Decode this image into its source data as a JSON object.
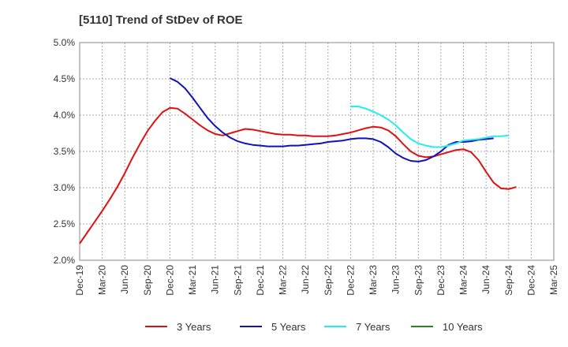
{
  "chart_data": {
    "type": "line",
    "title": "[5110]  Trend of StDev of ROE",
    "xlabel": "",
    "ylabel": "",
    "x_tick_labels": [
      "Dec-19",
      "Mar-20",
      "Jun-20",
      "Sep-20",
      "Dec-20",
      "Mar-21",
      "Jun-21",
      "Sep-21",
      "Dec-21",
      "Mar-22",
      "Jun-22",
      "Sep-22",
      "Dec-22",
      "Mar-23",
      "Jun-23",
      "Sep-23",
      "Dec-23",
      "Mar-24",
      "Jun-24",
      "Sep-24",
      "Dec-24",
      "Mar-25"
    ],
    "y_tick_labels": [
      "2.0%",
      "2.5%",
      "3.0%",
      "3.5%",
      "4.0%",
      "4.5%",
      "5.0%"
    ],
    "ylim": [
      2.0,
      5.0
    ],
    "y_unit": "%",
    "grid": true,
    "legend_position": "bottom",
    "series": [
      {
        "name": "3 Years",
        "color": "#dd1111",
        "points": [
          [
            "Dec-19",
            2.23
          ],
          [
            "Jan-20",
            2.38
          ],
          [
            "Feb-20",
            2.53
          ],
          [
            "Mar-20",
            2.68
          ],
          [
            "Apr-20",
            2.84
          ],
          [
            "May-20",
            3.01
          ],
          [
            "Jun-20",
            3.2
          ],
          [
            "Jul-20",
            3.41
          ],
          [
            "Aug-20",
            3.6
          ],
          [
            "Sep-20",
            3.78
          ],
          [
            "Oct-20",
            3.92
          ],
          [
            "Nov-20",
            4.04
          ],
          [
            "Dec-20",
            4.1
          ],
          [
            "Jan-21",
            4.09
          ],
          [
            "Feb-21",
            4.02
          ],
          [
            "Mar-21",
            3.94
          ],
          [
            "Apr-21",
            3.86
          ],
          [
            "May-21",
            3.79
          ],
          [
            "Jun-21",
            3.74
          ],
          [
            "Jul-21",
            3.72
          ],
          [
            "Aug-21",
            3.75
          ],
          [
            "Sep-21",
            3.78
          ],
          [
            "Oct-21",
            3.81
          ],
          [
            "Nov-21",
            3.8
          ],
          [
            "Dec-21",
            3.78
          ],
          [
            "Jan-22",
            3.76
          ],
          [
            "Feb-22",
            3.74
          ],
          [
            "Mar-22",
            3.73
          ],
          [
            "Apr-22",
            3.73
          ],
          [
            "May-22",
            3.72
          ],
          [
            "Jun-22",
            3.72
          ],
          [
            "Jul-22",
            3.71
          ],
          [
            "Aug-22",
            3.71
          ],
          [
            "Sep-22",
            3.71
          ],
          [
            "Oct-22",
            3.72
          ],
          [
            "Nov-22",
            3.74
          ],
          [
            "Dec-22",
            3.76
          ],
          [
            "Jan-23",
            3.79
          ],
          [
            "Feb-23",
            3.82
          ],
          [
            "Mar-23",
            3.84
          ],
          [
            "Apr-23",
            3.83
          ],
          [
            "May-23",
            3.79
          ],
          [
            "Jun-23",
            3.71
          ],
          [
            "Jul-23",
            3.6
          ],
          [
            "Aug-23",
            3.5
          ],
          [
            "Sep-23",
            3.44
          ],
          [
            "Oct-23",
            3.42
          ],
          [
            "Nov-23",
            3.43
          ],
          [
            "Dec-23",
            3.46
          ],
          [
            "Jan-24",
            3.49
          ],
          [
            "Feb-24",
            3.52
          ],
          [
            "Mar-24",
            3.53
          ],
          [
            "Apr-24",
            3.49
          ],
          [
            "May-24",
            3.38
          ],
          [
            "Jun-24",
            3.22
          ],
          [
            "Jul-24",
            3.07
          ],
          [
            "Aug-24",
            2.99
          ],
          [
            "Sep-24",
            2.98
          ],
          [
            "Oct-24",
            3.01
          ]
        ]
      },
      {
        "name": "5 Years",
        "color": "#1111bb",
        "points": [
          [
            "Dec-20",
            4.51
          ],
          [
            "Jan-21",
            4.46
          ],
          [
            "Feb-21",
            4.37
          ],
          [
            "Mar-21",
            4.24
          ],
          [
            "Apr-21",
            4.1
          ],
          [
            "May-21",
            3.96
          ],
          [
            "Jun-21",
            3.85
          ],
          [
            "Jul-21",
            3.76
          ],
          [
            "Aug-21",
            3.69
          ],
          [
            "Sep-21",
            3.64
          ],
          [
            "Oct-21",
            3.61
          ],
          [
            "Nov-21",
            3.59
          ],
          [
            "Dec-21",
            3.58
          ],
          [
            "Jan-22",
            3.57
          ],
          [
            "Feb-22",
            3.57
          ],
          [
            "Mar-22",
            3.57
          ],
          [
            "Apr-22",
            3.58
          ],
          [
            "May-22",
            3.58
          ],
          [
            "Jun-22",
            3.59
          ],
          [
            "Jul-22",
            3.6
          ],
          [
            "Aug-22",
            3.61
          ],
          [
            "Sep-22",
            3.63
          ],
          [
            "Oct-22",
            3.64
          ],
          [
            "Nov-22",
            3.65
          ],
          [
            "Dec-22",
            3.67
          ],
          [
            "Jan-23",
            3.68
          ],
          [
            "Feb-23",
            3.68
          ],
          [
            "Mar-23",
            3.67
          ],
          [
            "Apr-23",
            3.63
          ],
          [
            "May-23",
            3.56
          ],
          [
            "Jun-23",
            3.47
          ],
          [
            "Jul-23",
            3.41
          ],
          [
            "Aug-23",
            3.37
          ],
          [
            "Sep-23",
            3.36
          ],
          [
            "Oct-23",
            3.38
          ],
          [
            "Nov-23",
            3.43
          ],
          [
            "Dec-23",
            3.5
          ],
          [
            "Jan-24",
            3.59
          ],
          [
            "Feb-24",
            3.63
          ],
          [
            "Mar-24",
            3.63
          ],
          [
            "Apr-24",
            3.64
          ],
          [
            "May-24",
            3.66
          ],
          [
            "Jun-24",
            3.67
          ],
          [
            "Jul-24",
            3.68
          ]
        ]
      },
      {
        "name": "7 Years",
        "color": "#22eeee",
        "points": [
          [
            "Dec-22",
            4.12
          ],
          [
            "Jan-23",
            4.12
          ],
          [
            "Feb-23",
            4.09
          ],
          [
            "Mar-23",
            4.05
          ],
          [
            "Apr-23",
            4.0
          ],
          [
            "May-23",
            3.94
          ],
          [
            "Jun-23",
            3.86
          ],
          [
            "Jul-23",
            3.76
          ],
          [
            "Aug-23",
            3.67
          ],
          [
            "Sep-23",
            3.61
          ],
          [
            "Oct-23",
            3.58
          ],
          [
            "Nov-23",
            3.56
          ],
          [
            "Dec-23",
            3.56
          ],
          [
            "Jan-24",
            3.58
          ],
          [
            "Feb-24",
            3.61
          ],
          [
            "Mar-24",
            3.65
          ],
          [
            "Apr-24",
            3.66
          ],
          [
            "May-24",
            3.67
          ],
          [
            "Jun-24",
            3.69
          ],
          [
            "Jul-24",
            3.71
          ],
          [
            "Aug-24",
            3.71
          ],
          [
            "Sep-24",
            3.72
          ]
        ]
      },
      {
        "name": "10 Years",
        "color": "#228822",
        "points": []
      }
    ]
  }
}
